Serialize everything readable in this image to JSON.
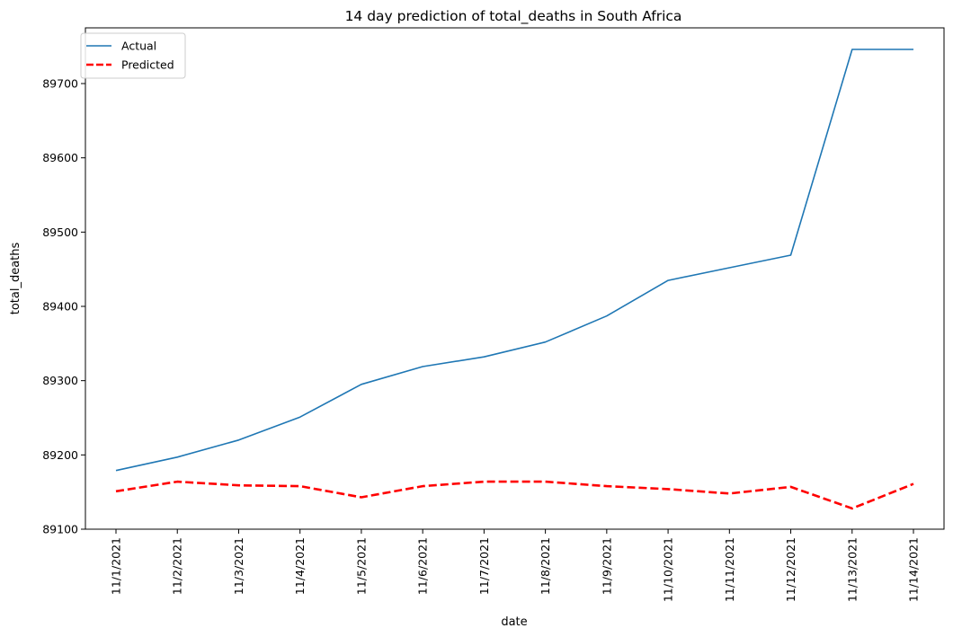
{
  "chart_data": {
    "type": "line",
    "title": "14 day prediction of total_deaths in South Africa",
    "xlabel": "date",
    "ylabel": "total_deaths",
    "categories": [
      "11/1/2021",
      "11/2/2021",
      "11/3/2021",
      "11/4/2021",
      "11/5/2021",
      "11/6/2021",
      "11/7/2021",
      "11/8/2021",
      "11/9/2021",
      "11/10/2021",
      "11/11/2021",
      "11/12/2021",
      "11/13/2021",
      "11/14/2021"
    ],
    "series": [
      {
        "name": "Actual",
        "color": "#1f77b4",
        "style": "solid",
        "values": [
          89179,
          89197,
          89220,
          89251,
          89295,
          89319,
          89332,
          89352,
          89387,
          89435,
          89452,
          89469,
          89746,
          89746
        ]
      },
      {
        "name": "Predicted",
        "color": "#ff0000",
        "style": "dashed",
        "values": [
          89151,
          89164,
          89159,
          89158,
          89143,
          89158,
          89164,
          89164,
          89158,
          89154,
          89148,
          89157,
          89128,
          89161
        ]
      }
    ],
    "yticks": [
      89100,
      89200,
      89300,
      89400,
      89500,
      89600,
      89700
    ],
    "ylim": [
      89100,
      89775
    ],
    "grid": false,
    "legend_position": "upper-left"
  }
}
